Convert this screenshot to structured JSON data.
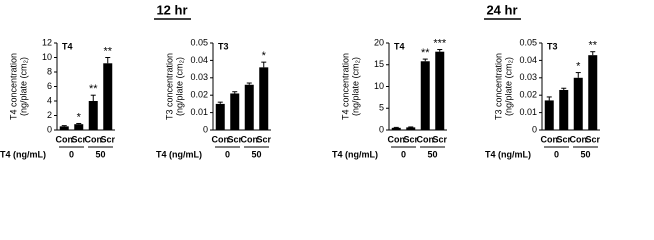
{
  "time_labels": [
    "12 hr",
    "24 hr"
  ],
  "chart_data": [
    {
      "type": "bar",
      "panel_label": "T4",
      "ylabel": [
        "T4 concentration",
        "(ng/plate (cm₂)"
      ],
      "categories": [
        "Con",
        "Scr",
        "Con",
        "Scr"
      ],
      "groups": [
        "0",
        "50"
      ],
      "group_axis_label": "T4 (ng/mL)",
      "values": [
        0.5,
        0.8,
        4.0,
        9.2
      ],
      "errors": [
        0.1,
        0.1,
        0.8,
        0.8
      ],
      "annotations": [
        null,
        "*",
        "**",
        "**"
      ],
      "color": "#000000",
      "ylim": [
        0,
        12
      ],
      "yticks": [
        0,
        2,
        4,
        6,
        8,
        10,
        12
      ]
    },
    {
      "type": "bar",
      "panel_label": "T3",
      "ylabel": [
        "T3 concentration",
        "(ng/plate (cm₂)"
      ],
      "categories": [
        "Con",
        "Scr",
        "Con",
        "Scr"
      ],
      "groups": [
        "0",
        "50"
      ],
      "group_axis_label": "T4 (ng/mL)",
      "values": [
        0.015,
        0.021,
        0.026,
        0.036
      ],
      "errors": [
        0.001,
        0.001,
        0.001,
        0.003
      ],
      "annotations": [
        null,
        null,
        null,
        "*"
      ],
      "color": "#000000",
      "ylim": [
        0,
        0.05
      ],
      "yticks": [
        0,
        0.01,
        0.02,
        0.03,
        0.04,
        0.05
      ]
    },
    {
      "type": "bar",
      "panel_label": "T4",
      "ylabel": [
        "T4 concentration",
        "(ng/plate (cm₂)"
      ],
      "categories": [
        "Con",
        "Scr",
        "Con",
        "Scr"
      ],
      "groups": [
        "0",
        "50"
      ],
      "group_axis_label": "T4 (ng/mL)",
      "values": [
        0.5,
        0.6,
        15.8,
        18.0
      ],
      "errors": [
        0.1,
        0.1,
        0.5,
        0.5
      ],
      "annotations": [
        null,
        null,
        "**",
        "***"
      ],
      "color": "#000000",
      "ylim": [
        0,
        20
      ],
      "yticks": [
        0,
        5,
        10,
        15,
        20
      ]
    },
    {
      "type": "bar",
      "panel_label": "T3",
      "ylabel": [
        "T3 concentration",
        "(ng/plate (cm₂)"
      ],
      "categories": [
        "Con",
        "Scr",
        "Con",
        "Scr"
      ],
      "groups": [
        "0",
        "50"
      ],
      "group_axis_label": "T4 (ng/mL)",
      "values": [
        0.017,
        0.023,
        0.03,
        0.043
      ],
      "errors": [
        0.002,
        0.001,
        0.003,
        0.002
      ],
      "annotations": [
        null,
        null,
        "*",
        "**"
      ],
      "color": "#000000",
      "ylim": [
        0,
        0.05
      ],
      "yticks": [
        0,
        0.01,
        0.02,
        0.03,
        0.04,
        0.05
      ]
    }
  ]
}
